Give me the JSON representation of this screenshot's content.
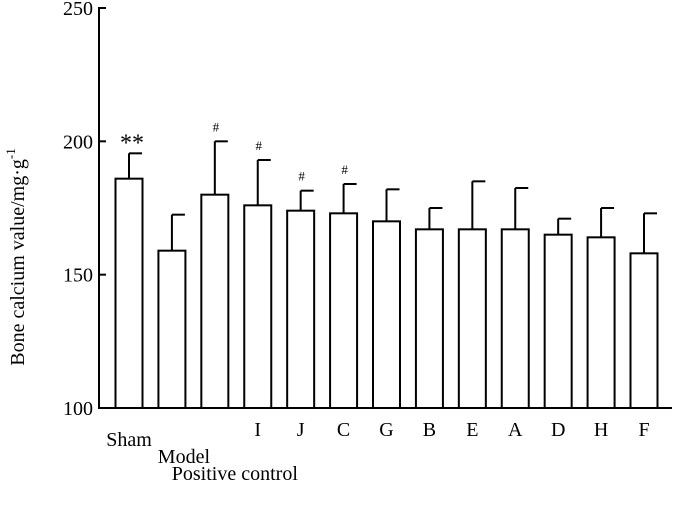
{
  "chart_data": {
    "type": "bar",
    "title": "",
    "xlabel": "",
    "ylabel": "Bone calcium value/mg·g",
    "ylabel_superscript": "-1",
    "ylim": [
      100,
      250
    ],
    "yticks": [
      100,
      150,
      200,
      250
    ],
    "grid": false,
    "legend": "none",
    "error_bars": true,
    "categories": [
      "Sham",
      "Model",
      "Positive control",
      "I",
      "J",
      "C",
      "G",
      "B",
      "E",
      "A",
      "D",
      "H",
      "F"
    ],
    "values": [
      186,
      159,
      180,
      176,
      174,
      173,
      170,
      167,
      167,
      167,
      165,
      164,
      158
    ],
    "errors": [
      9.5,
      13.5,
      20,
      17,
      7.5,
      11,
      12,
      8,
      18,
      15.5,
      6,
      11,
      15
    ],
    "annotations": [
      "**",
      "",
      "#",
      "#",
      "#",
      "#",
      "",
      "",
      "",
      "",
      "",
      "",
      ""
    ],
    "bar_fill": "#ffffff",
    "stroke_color": "#000000"
  }
}
